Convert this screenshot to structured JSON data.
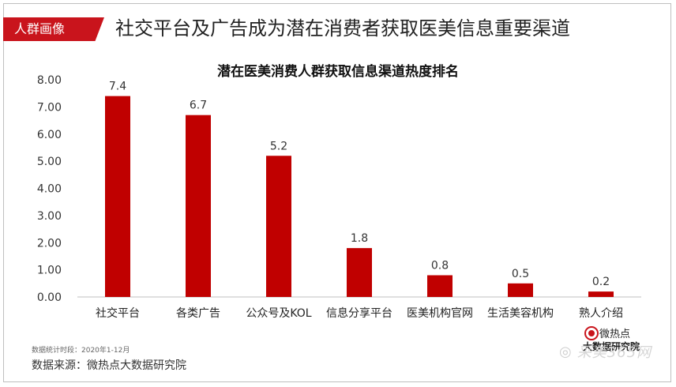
{
  "header": {
    "tag": "人群画像",
    "headline": "社交平台及广告成为潜在消费者获取医美信息重要渠道"
  },
  "chart_data": {
    "type": "bar",
    "title": "潜在医美消费人群获取信息渠道热度排名",
    "categories": [
      "社交平台",
      "各类广告",
      "公众号及KOL",
      "信息分享平台",
      "医美机构官网",
      "生活美容机构",
      "熟人介绍"
    ],
    "values": [
      7.4,
      6.7,
      5.2,
      1.8,
      0.8,
      0.5,
      0.2
    ],
    "value_labels": [
      "7.4",
      "6.7",
      "5.2",
      "1.8",
      "0.8",
      "0.5",
      "0.2"
    ],
    "y_ticks": [
      "0.00",
      "1.00",
      "2.00",
      "3.00",
      "4.00",
      "5.00",
      "6.00",
      "7.00",
      "8.00"
    ],
    "ylim": [
      0,
      8
    ],
    "xlabel": "",
    "ylabel": "",
    "bar_color": "#c00000",
    "grid": false,
    "legend": "none"
  },
  "footer": {
    "stat_note": "数据统计时段：2020年1-12月",
    "source": "数据来源：微热点大数据研究院",
    "logo_text": "微热点",
    "logo_sub": "大数据研究院",
    "watermark": "采美365网"
  }
}
